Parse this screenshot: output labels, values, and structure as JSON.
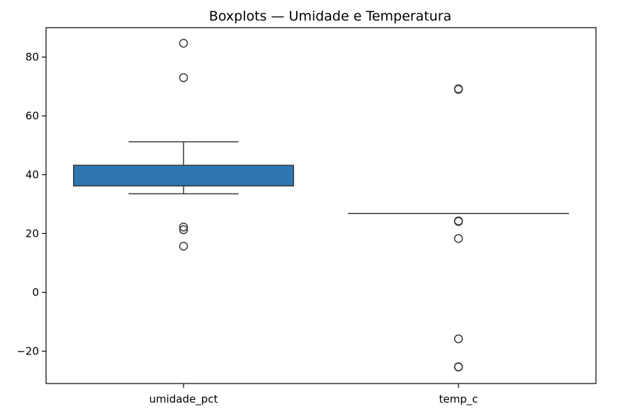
{
  "chart_data": {
    "type": "boxplot",
    "title": "Boxplots — Umidade e Temperatura",
    "xlabel": "",
    "ylabel": "",
    "categories": [
      "umidade_pct",
      "temp_c"
    ],
    "ylim": [
      -31,
      90
    ],
    "yticks": [
      -20,
      0,
      20,
      40,
      60,
      80
    ],
    "ytick_labels": [
      "−20",
      "0",
      "20",
      "40",
      "60",
      "80"
    ],
    "grid": false,
    "boxes": [
      {
        "category": "umidade_pct",
        "whisker_low": 33.5,
        "q1": 36.2,
        "median": 36.2,
        "q3": 43.2,
        "whisker_high": 51.2,
        "outliers": [
          84.7,
          73.0,
          22.2,
          21.3,
          15.7
        ],
        "color": "#2d76b0"
      },
      {
        "category": "temp_c",
        "whisker_low": 26.8,
        "q1": 26.8,
        "median": 26.8,
        "q3": 26.8,
        "whisker_high": 26.8,
        "outliers": [
          69.2,
          69.0,
          24.3,
          24.1,
          18.3,
          -15.8,
          -25.3,
          -25.4
        ],
        "color": "#2d76b0"
      }
    ]
  }
}
